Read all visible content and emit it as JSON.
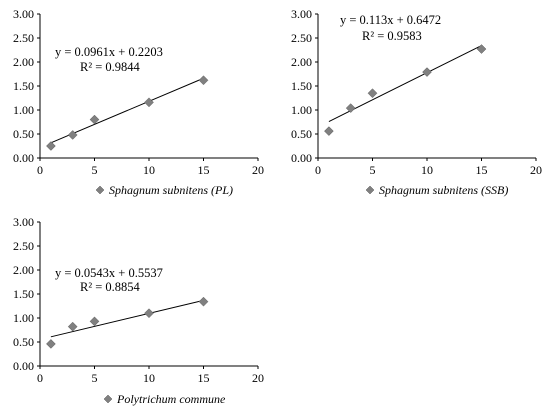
{
  "chart_data": [
    {
      "type": "scatter",
      "legend": "Sphagnum subnitens (PL)",
      "legend_placement": "bottom",
      "equation": "y = 0.0961x + 0.2203",
      "r2": "R² = 0.9844",
      "xlim": [
        0,
        20
      ],
      "ylim": [
        0,
        3
      ],
      "xticks": [
        "0",
        "5",
        "10",
        "15",
        "20"
      ],
      "yticks": [
        "0.00",
        "0.50",
        "1.00",
        "1.50",
        "2.00",
        "2.50",
        "3.00"
      ],
      "grid": false,
      "x": [
        1,
        3,
        5,
        10,
        15
      ],
      "y": [
        0.25,
        0.48,
        0.8,
        1.16,
        1.62
      ],
      "trendline": {
        "slope": 0.0961,
        "intercept": 0.2203,
        "x_range": [
          1,
          15
        ]
      }
    },
    {
      "type": "scatter",
      "legend": "Sphagnum subnitens (SSB)",
      "legend_placement": "bottom",
      "equation": "y = 0.113x + 0.6472",
      "r2": "R² = 0.9583",
      "xlim": [
        0,
        20
      ],
      "ylim": [
        0,
        3
      ],
      "xticks": [
        "0",
        "5",
        "10",
        "15",
        "20"
      ],
      "yticks": [
        "0.00",
        "0.50",
        "1.00",
        "1.50",
        "2.00",
        "2.50",
        "3.00"
      ],
      "grid": false,
      "x": [
        1,
        3,
        5,
        10,
        15
      ],
      "y": [
        0.56,
        1.04,
        1.35,
        1.79,
        2.27
      ],
      "trendline": {
        "slope": 0.113,
        "intercept": 0.6472,
        "x_range": [
          1,
          15
        ]
      }
    },
    {
      "type": "scatter",
      "legend": "Polytrichum commune",
      "legend_placement": "bottom",
      "equation": "y = 0.0543x + 0.5537",
      "r2": "R² = 0.8854",
      "xlim": [
        0,
        20
      ],
      "ylim": [
        0,
        3
      ],
      "xticks": [
        "0",
        "5",
        "10",
        "15",
        "20"
      ],
      "yticks": [
        "0.00",
        "0.50",
        "1.00",
        "1.50",
        "2.00",
        "2.50",
        "3.00"
      ],
      "grid": false,
      "x": [
        1,
        3,
        5,
        10,
        15
      ],
      "y": [
        0.46,
        0.82,
        0.93,
        1.1,
        1.34
      ],
      "trendline": {
        "slope": 0.0543,
        "intercept": 0.5537,
        "x_range": [
          1,
          15
        ]
      }
    }
  ],
  "style": {
    "marker_color": "#808080",
    "marker_stroke": "#595959",
    "line_color": "#000000"
  }
}
